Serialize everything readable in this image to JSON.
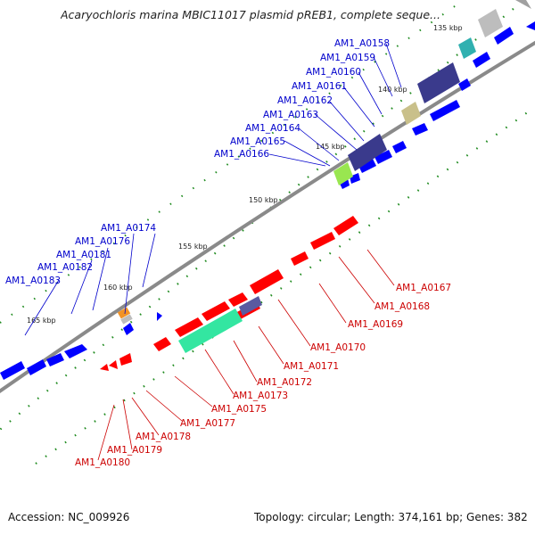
{
  "title": "Acaryochloris marina MBIC11017 plasmid pREB1, complete seque...",
  "footer": {
    "accession": "Accession: NC_009926",
    "summary": "Topology: circular; Length: 374,161 bp; Genes: 382"
  },
  "ticks": {
    "label_135": "135 kbp",
    "label_140": "140 kbp",
    "label_145": "145 kbp",
    "label_150": "150 kbp",
    "label_155": "155 kbp",
    "label_160": "160 kbp",
    "label_165": "165 kbp"
  },
  "genes_upper": [
    "AM1_A0158",
    "AM1_A0159",
    "AM1_A0160",
    "AM1_A0161",
    "AM1_A0162",
    "AM1_A0163",
    "AM1_A0164",
    "AM1_A0165",
    "AM1_A0166",
    "AM1_A0174",
    "AM1_A0176",
    "AM1_A0181",
    "AM1_A0182",
    "AM1_A0183"
  ],
  "genes_lower": [
    "AM1_A0167",
    "AM1_A0168",
    "AM1_A0169",
    "AM1_A0170",
    "AM1_A0171",
    "AM1_A0172",
    "AM1_A0173",
    "AM1_A0175",
    "AM1_A0177",
    "AM1_A0178",
    "AM1_A0179",
    "AM1_A0180"
  ],
  "colors": {
    "forward_gene": "#0000ff",
    "reverse_gene": "#ff0000",
    "upper_label": "#0000cc",
    "lower_label": "#cc0000",
    "backbone": "#888888",
    "tick_marks": "#007700"
  }
}
